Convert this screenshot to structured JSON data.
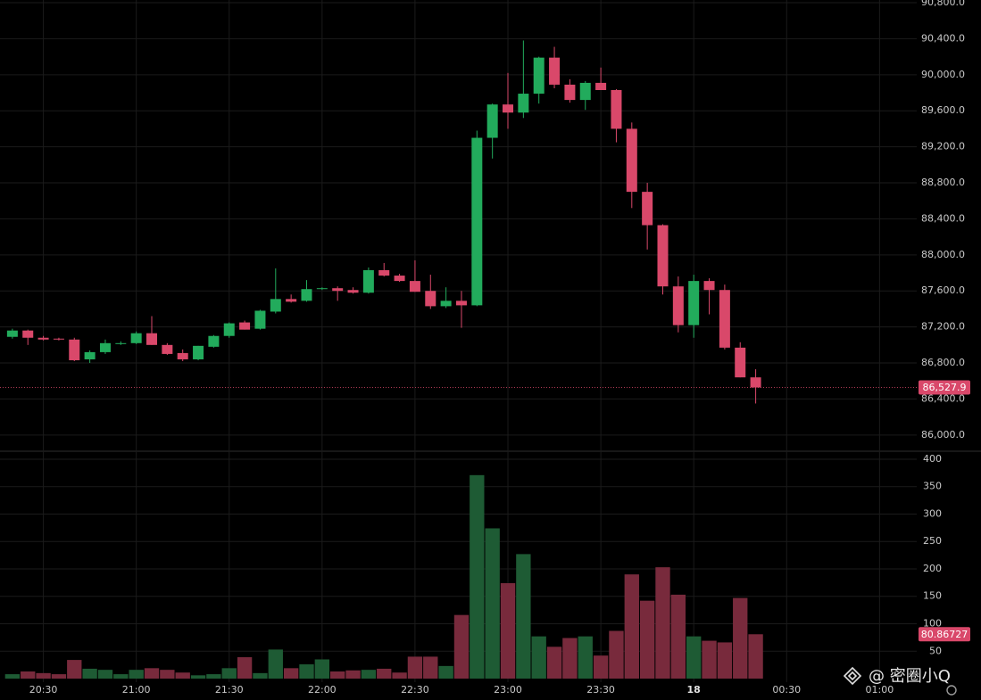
{
  "chart_data": {
    "type": "candlestick",
    "x": [
      "20:20",
      "20:25",
      "20:30",
      "20:35",
      "20:40",
      "20:45",
      "20:50",
      "20:55",
      "21:00",
      "21:05",
      "21:10",
      "21:15",
      "21:20",
      "21:25",
      "21:30",
      "21:35",
      "21:40",
      "21:45",
      "21:50",
      "21:55",
      "22:00",
      "22:05",
      "22:10",
      "22:15",
      "22:20",
      "22:25",
      "22:30",
      "22:35",
      "22:40",
      "22:45",
      "22:50",
      "22:55",
      "23:00",
      "23:05",
      "23:10",
      "23:15",
      "23:20",
      "23:25",
      "23:30",
      "23:35",
      "23:40",
      "23:45",
      "23:50",
      "23:55",
      "00:00",
      "00:05",
      "00:10",
      "00:15",
      "00:20"
    ],
    "open": [
      87090,
      87160,
      87080,
      87070,
      87060,
      86840,
      86920,
      87010,
      87020,
      87130,
      87000,
      86910,
      86840,
      86980,
      87100,
      87250,
      87180,
      87370,
      87510,
      87490,
      87620,
      87630,
      87610,
      87580,
      87830,
      87770,
      87710,
      87600,
      87430,
      87490,
      87440,
      89300,
      89670,
      89580,
      89790,
      90190,
      89890,
      89720,
      89910,
      89830,
      89400,
      88700,
      88330,
      87650,
      87220,
      87710,
      87610,
      86970,
      86640
    ],
    "high": [
      87180,
      87170,
      87100,
      87080,
      87080,
      86940,
      87060,
      87040,
      87150,
      87320,
      87020,
      86950,
      86990,
      87110,
      87250,
      87270,
      87390,
      87850,
      87560,
      87720,
      87640,
      87650,
      87640,
      87860,
      87910,
      87790,
      87940,
      87780,
      87640,
      87600,
      89380,
      89680,
      90020,
      90380,
      90200,
      90310,
      89950,
      89930,
      90080,
      89840,
      89470,
      88800,
      88340,
      87760,
      87780,
      87740,
      87670,
      87030,
      86730
    ],
    "low": [
      87070,
      87000,
      87050,
      87050,
      86820,
      86800,
      86900,
      87000,
      87010,
      87000,
      86890,
      86820,
      86830,
      86970,
      87080,
      87170,
      87170,
      87350,
      87470,
      87480,
      87610,
      87490,
      87570,
      87570,
      87760,
      87700,
      87590,
      87400,
      87410,
      87190,
      87430,
      89070,
      89400,
      89520,
      89680,
      89850,
      89690,
      89610,
      89830,
      89250,
      88520,
      88060,
      87560,
      87140,
      87080,
      87340,
      86950,
      86640,
      86350
    ],
    "close": [
      87160,
      87080,
      87060,
      87060,
      86830,
      86920,
      87020,
      87020,
      87130,
      87000,
      86900,
      86840,
      86990,
      87100,
      87240,
      87170,
      87380,
      87510,
      87480,
      87620,
      87630,
      87600,
      87580,
      87830,
      87770,
      87710,
      87590,
      87430,
      87490,
      87440,
      89300,
      89670,
      89580,
      89790,
      90190,
      89890,
      89720,
      89910,
      89830,
      89400,
      88700,
      88330,
      87650,
      87220,
      87710,
      87610,
      86970,
      86640,
      86527.9
    ],
    "volume": [
      8,
      13,
      10,
      8,
      34,
      18,
      16,
      8,
      16,
      19,
      16,
      11,
      6,
      8,
      19,
      39,
      10,
      53,
      19,
      26,
      35,
      13,
      15,
      16,
      18,
      11,
      40,
      40,
      23,
      116,
      371,
      274,
      174,
      227,
      77,
      58,
      74,
      77,
      42,
      87,
      190,
      142,
      203,
      153,
      77,
      69,
      66,
      147,
      80.86727
    ],
    "up_color": "#22ab5c",
    "down_color": "#d9486a",
    "volume_up_color": "#1e5b34",
    "volume_down_color": "#782a3c",
    "grid": true,
    "xlim": [
      "20:16",
      "01:12"
    ],
    "xticks": [
      "20:30",
      "21:00",
      "21:30",
      "22:00",
      "22:30",
      "23:00",
      "23:30",
      {
        "value": "00:00",
        "label": "18"
      },
      "00:30",
      "01:00"
    ],
    "ylim": [
      85830,
      90830
    ],
    "yticks": [
      {
        "value": 86000,
        "label": "86,000.0"
      },
      {
        "value": 86400,
        "label": "86,400.0"
      },
      {
        "value": 86800,
        "label": "86,800.0"
      },
      {
        "value": 87200,
        "label": "87,200.0"
      },
      {
        "value": 87600,
        "label": "87,600.0"
      },
      {
        "value": 88000,
        "label": "88,000.0"
      },
      {
        "value": 88400,
        "label": "88,400.0"
      },
      {
        "value": 88800,
        "label": "88,800.0"
      },
      {
        "value": 89200,
        "label": "89,200.0"
      },
      {
        "value": 89600,
        "label": "89,600.0"
      },
      {
        "value": 90000,
        "label": "90,000.0"
      },
      {
        "value": 90400,
        "label": "90,400.0"
      },
      {
        "value": 90800,
        "label": "90,800.0"
      }
    ],
    "volume_ylim": [
      -6.5,
      413
    ],
    "volume_yticks": [
      50,
      100,
      150,
      200,
      250,
      300,
      350,
      400
    ],
    "last_price": {
      "value": 86527.9,
      "label": "86,527.9"
    },
    "last_volume": 80.86727,
    "watermark": "@ 密圈小Q"
  }
}
